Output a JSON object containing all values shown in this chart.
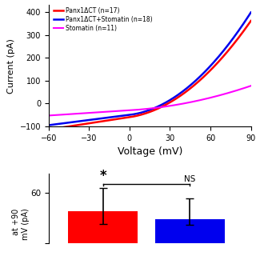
{
  "top_panel": {
    "voltage_range": [
      -60,
      90
    ],
    "current_range": [
      -100,
      430
    ],
    "yticks": [
      -100,
      0,
      100,
      200,
      300,
      400
    ],
    "xticks": [
      -60,
      -30,
      0,
      30,
      60,
      90
    ],
    "xlabel": "Voltage (mV)",
    "ylabel": "Current (pA)",
    "lines": [
      {
        "label": "Panx1ΔCT (n=17)",
        "color": "#FF0000",
        "lw": 1.8
      },
      {
        "label": "Panx1ΔCT+Stomatin (n=18)",
        "color": "#0000EE",
        "lw": 1.8
      },
      {
        "label": "Stomatin (n=11)",
        "color": "#FF00FF",
        "lw": 1.5
      }
    ]
  },
  "bottom_panel": {
    "bar1_color": "#FF0000",
    "bar2_color": "#0000EE",
    "bar1_height": 38,
    "bar2_height": 28,
    "bar1_err_up": 27,
    "bar1_err_dn": 15,
    "bar2_err_up": 25,
    "bar2_err_dn": 6,
    "ylabel": "at +90\nmV (pA)",
    "star_label": "*",
    "ns_label": "NS",
    "ytick_val": 60
  }
}
